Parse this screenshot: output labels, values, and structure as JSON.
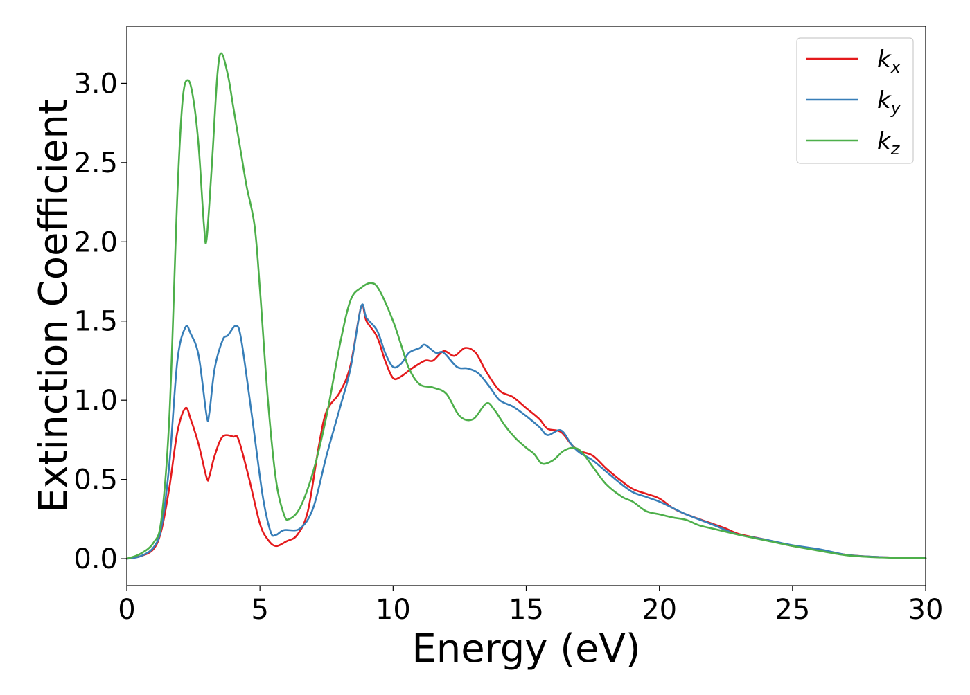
{
  "chart_data": {
    "type": "line",
    "xlabel": "Energy (eV)",
    "ylabel": "Extinction Coefficient",
    "xlim": [
      0,
      30
    ],
    "ylim": [
      -0.17,
      3.36
    ],
    "xticks": [
      0,
      5,
      10,
      15,
      20,
      25,
      30
    ],
    "yticks": [
      0.0,
      0.5,
      1.0,
      1.5,
      2.0,
      2.5,
      3.0
    ],
    "xtick_labels": [
      "0",
      "5",
      "10",
      "15",
      "20",
      "25",
      "30"
    ],
    "ytick_labels": [
      "0.0",
      "0.5",
      "1.0",
      "1.5",
      "2.0",
      "2.5",
      "3.0"
    ],
    "grid": false,
    "legend_position": "top-right",
    "series": [
      {
        "name": "k_x",
        "legend_base": "k",
        "legend_sub": "x",
        "color": "#e41a1c",
        "points": [
          [
            0,
            0
          ],
          [
            0.5,
            0.015
          ],
          [
            1.0,
            0.06
          ],
          [
            1.3,
            0.18
          ],
          [
            1.6,
            0.45
          ],
          [
            1.9,
            0.8
          ],
          [
            2.2,
            0.95
          ],
          [
            2.4,
            0.88
          ],
          [
            2.7,
            0.72
          ],
          [
            3.0,
            0.51
          ],
          [
            3.1,
            0.52
          ],
          [
            3.3,
            0.65
          ],
          [
            3.6,
            0.77
          ],
          [
            4.0,
            0.77
          ],
          [
            4.2,
            0.75
          ],
          [
            4.6,
            0.5
          ],
          [
            5.0,
            0.22
          ],
          [
            5.3,
            0.12
          ],
          [
            5.6,
            0.08
          ],
          [
            6.0,
            0.11
          ],
          [
            6.4,
            0.15
          ],
          [
            6.8,
            0.3
          ],
          [
            7.2,
            0.7
          ],
          [
            7.5,
            0.93
          ],
          [
            8.0,
            1.05
          ],
          [
            8.4,
            1.22
          ],
          [
            8.8,
            1.59
          ],
          [
            9.0,
            1.5
          ],
          [
            9.4,
            1.4
          ],
          [
            9.7,
            1.25
          ],
          [
            10.0,
            1.14
          ],
          [
            10.3,
            1.15
          ],
          [
            10.7,
            1.2
          ],
          [
            11.2,
            1.25
          ],
          [
            11.5,
            1.25
          ],
          [
            11.9,
            1.31
          ],
          [
            12.3,
            1.28
          ],
          [
            12.7,
            1.33
          ],
          [
            13.1,
            1.3
          ],
          [
            13.5,
            1.18
          ],
          [
            14.0,
            1.06
          ],
          [
            14.5,
            1.02
          ],
          [
            15.0,
            0.95
          ],
          [
            15.5,
            0.88
          ],
          [
            15.8,
            0.82
          ],
          [
            16.3,
            0.8
          ],
          [
            16.7,
            0.72
          ],
          [
            17.0,
            0.68
          ],
          [
            17.5,
            0.65
          ],
          [
            18.0,
            0.57
          ],
          [
            18.5,
            0.5
          ],
          [
            19.0,
            0.44
          ],
          [
            19.5,
            0.41
          ],
          [
            20.0,
            0.38
          ],
          [
            20.5,
            0.32
          ],
          [
            21.0,
            0.28
          ],
          [
            22.0,
            0.22
          ],
          [
            22.5,
            0.19
          ],
          [
            23.0,
            0.155
          ],
          [
            24.0,
            0.12
          ],
          [
            25.0,
            0.08
          ],
          [
            26.0,
            0.055
          ],
          [
            27.0,
            0.025
          ],
          [
            28.0,
            0.012
          ],
          [
            29.0,
            0.006
          ],
          [
            30.0,
            0.003
          ]
        ]
      },
      {
        "name": "k_y",
        "legend_base": "k",
        "legend_sub": "y",
        "color": "#377eb8",
        "points": [
          [
            0,
            0
          ],
          [
            0.5,
            0.015
          ],
          [
            1.0,
            0.07
          ],
          [
            1.3,
            0.2
          ],
          [
            1.6,
            0.6
          ],
          [
            1.9,
            1.25
          ],
          [
            2.2,
            1.46
          ],
          [
            2.4,
            1.42
          ],
          [
            2.7,
            1.28
          ],
          [
            3.0,
            0.9
          ],
          [
            3.1,
            0.92
          ],
          [
            3.3,
            1.2
          ],
          [
            3.6,
            1.38
          ],
          [
            3.8,
            1.41
          ],
          [
            4.1,
            1.47
          ],
          [
            4.3,
            1.38
          ],
          [
            4.7,
            0.9
          ],
          [
            5.1,
            0.4
          ],
          [
            5.4,
            0.17
          ],
          [
            5.6,
            0.15
          ],
          [
            5.9,
            0.18
          ],
          [
            6.5,
            0.19
          ],
          [
            7.0,
            0.32
          ],
          [
            7.5,
            0.65
          ],
          [
            8.0,
            0.95
          ],
          [
            8.4,
            1.2
          ],
          [
            8.8,
            1.59
          ],
          [
            9.0,
            1.52
          ],
          [
            9.4,
            1.44
          ],
          [
            9.7,
            1.3
          ],
          [
            10.0,
            1.21
          ],
          [
            10.3,
            1.23
          ],
          [
            10.6,
            1.3
          ],
          [
            11.0,
            1.33
          ],
          [
            11.2,
            1.35
          ],
          [
            11.6,
            1.3
          ],
          [
            11.9,
            1.3
          ],
          [
            12.4,
            1.21
          ],
          [
            12.8,
            1.2
          ],
          [
            13.2,
            1.17
          ],
          [
            13.6,
            1.09
          ],
          [
            14.0,
            1.0
          ],
          [
            14.5,
            0.96
          ],
          [
            15.0,
            0.9
          ],
          [
            15.5,
            0.83
          ],
          [
            15.8,
            0.78
          ],
          [
            16.3,
            0.81
          ],
          [
            16.7,
            0.72
          ],
          [
            17.0,
            0.67
          ],
          [
            17.5,
            0.62
          ],
          [
            18.0,
            0.55
          ],
          [
            18.5,
            0.48
          ],
          [
            19.0,
            0.42
          ],
          [
            19.5,
            0.39
          ],
          [
            20.0,
            0.36
          ],
          [
            20.5,
            0.32
          ],
          [
            21.0,
            0.28
          ],
          [
            22.0,
            0.215
          ],
          [
            22.5,
            0.18
          ],
          [
            23.0,
            0.15
          ],
          [
            24.0,
            0.12
          ],
          [
            25.0,
            0.085
          ],
          [
            26.0,
            0.06
          ],
          [
            27.0,
            0.025
          ],
          [
            28.0,
            0.012
          ],
          [
            29.0,
            0.006
          ],
          [
            30.0,
            0.003
          ]
        ]
      },
      {
        "name": "k_z",
        "legend_base": "k",
        "legend_sub": "z",
        "color": "#4daf4a",
        "points": [
          [
            0,
            0
          ],
          [
            0.5,
            0.03
          ],
          [
            1.0,
            0.1
          ],
          [
            1.3,
            0.25
          ],
          [
            1.6,
            0.9
          ],
          [
            1.9,
            2.3
          ],
          [
            2.1,
            2.9
          ],
          [
            2.3,
            3.02
          ],
          [
            2.5,
            2.9
          ],
          [
            2.7,
            2.6
          ],
          [
            2.9,
            2.1
          ],
          [
            3.0,
            2.02
          ],
          [
            3.2,
            2.5
          ],
          [
            3.4,
            3.05
          ],
          [
            3.55,
            3.19
          ],
          [
            3.8,
            3.05
          ],
          [
            4.0,
            2.85
          ],
          [
            4.3,
            2.55
          ],
          [
            4.5,
            2.35
          ],
          [
            4.8,
            2.1
          ],
          [
            5.0,
            1.7
          ],
          [
            5.3,
            1.0
          ],
          [
            5.6,
            0.5
          ],
          [
            5.9,
            0.28
          ],
          [
            6.1,
            0.25
          ],
          [
            6.5,
            0.32
          ],
          [
            7.0,
            0.55
          ],
          [
            7.5,
            0.9
          ],
          [
            8.0,
            1.35
          ],
          [
            8.4,
            1.63
          ],
          [
            8.8,
            1.71
          ],
          [
            9.2,
            1.74
          ],
          [
            9.5,
            1.69
          ],
          [
            10.0,
            1.5
          ],
          [
            10.3,
            1.35
          ],
          [
            10.6,
            1.2
          ],
          [
            11.0,
            1.1
          ],
          [
            11.5,
            1.08
          ],
          [
            12.0,
            1.04
          ],
          [
            12.5,
            0.9
          ],
          [
            13.0,
            0.88
          ],
          [
            13.5,
            0.98
          ],
          [
            13.8,
            0.94
          ],
          [
            14.2,
            0.84
          ],
          [
            14.6,
            0.76
          ],
          [
            15.0,
            0.7
          ],
          [
            15.3,
            0.66
          ],
          [
            15.6,
            0.6
          ],
          [
            16.0,
            0.62
          ],
          [
            16.4,
            0.68
          ],
          [
            16.8,
            0.7
          ],
          [
            17.1,
            0.67
          ],
          [
            17.5,
            0.58
          ],
          [
            18.0,
            0.47
          ],
          [
            18.6,
            0.39
          ],
          [
            19.0,
            0.36
          ],
          [
            19.5,
            0.3
          ],
          [
            20.0,
            0.28
          ],
          [
            20.5,
            0.26
          ],
          [
            21.0,
            0.245
          ],
          [
            21.5,
            0.21
          ],
          [
            22.0,
            0.19
          ],
          [
            22.5,
            0.17
          ],
          [
            23.0,
            0.15
          ],
          [
            24.0,
            0.115
          ],
          [
            25.0,
            0.08
          ],
          [
            26.0,
            0.05
          ],
          [
            27.0,
            0.022
          ],
          [
            28.0,
            0.01
          ],
          [
            29.0,
            0.005
          ],
          [
            30.0,
            0.003
          ]
        ]
      }
    ]
  }
}
